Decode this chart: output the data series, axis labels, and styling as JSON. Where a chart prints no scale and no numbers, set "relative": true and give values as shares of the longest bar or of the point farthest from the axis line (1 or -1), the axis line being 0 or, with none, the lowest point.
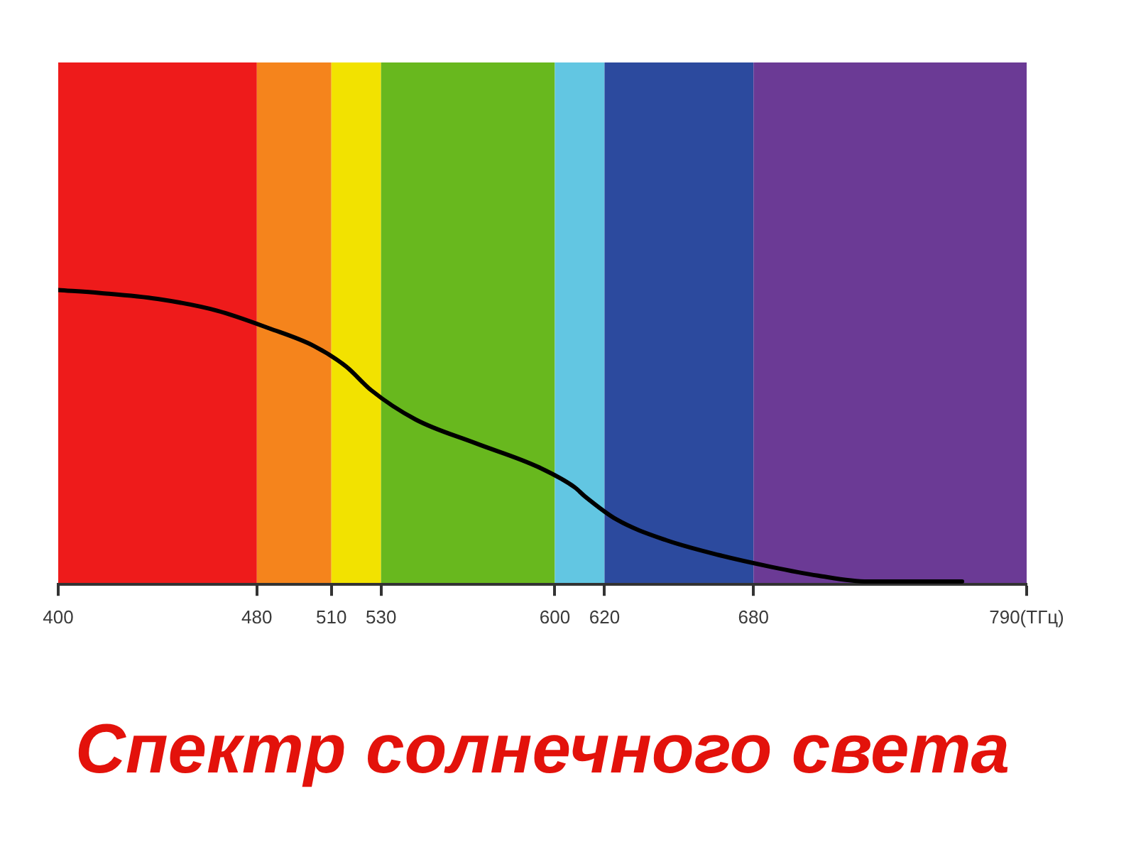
{
  "chart_data": {
    "type": "line",
    "title": "Спектр солнечного света",
    "x": [
      400,
      417,
      440,
      464,
      485,
      503,
      516,
      526,
      544,
      568,
      593,
      608,
      612,
      625,
      645,
      666,
      687,
      706,
      726,
      745,
      764
    ],
    "xlim": [
      400,
      790
    ],
    "xticks": [
      400,
      480,
      510,
      530,
      600,
      620,
      680,
      {
        "value": 790,
        "label": "790(ТГц)"
      }
    ],
    "relative": true,
    "series": [
      {
        "color": "#000000",
        "values": [
          1.0,
          0.99,
          0.97,
          0.93,
          0.87,
          0.81,
          0.74,
          0.66,
          0.56,
          0.48,
          0.4,
          0.33,
          0.3,
          0.22,
          0.15,
          0.1,
          0.06,
          0.03,
          0.01,
          0.01,
          0.01
        ]
      }
    ],
    "bands": [
      {
        "axis": "x",
        "from": 400,
        "to": 480,
        "color": "#ee1b1b"
      },
      {
        "axis": "x",
        "from": 480,
        "to": 510,
        "color": "#f5841c"
      },
      {
        "axis": "x",
        "from": 510,
        "to": 530,
        "color": "#f2e200"
      },
      {
        "axis": "x",
        "from": 530,
        "to": 600,
        "color": "#68b81e"
      },
      {
        "axis": "x",
        "from": 600,
        "to": 620,
        "color": "#62c6e2"
      },
      {
        "axis": "x",
        "from": 620,
        "to": 680,
        "color": "#2c4a9e"
      },
      {
        "axis": "x",
        "from": 680,
        "to": 790,
        "color": "#6b3a95"
      }
    ],
    "marker": "none",
    "line_style": "solid"
  }
}
